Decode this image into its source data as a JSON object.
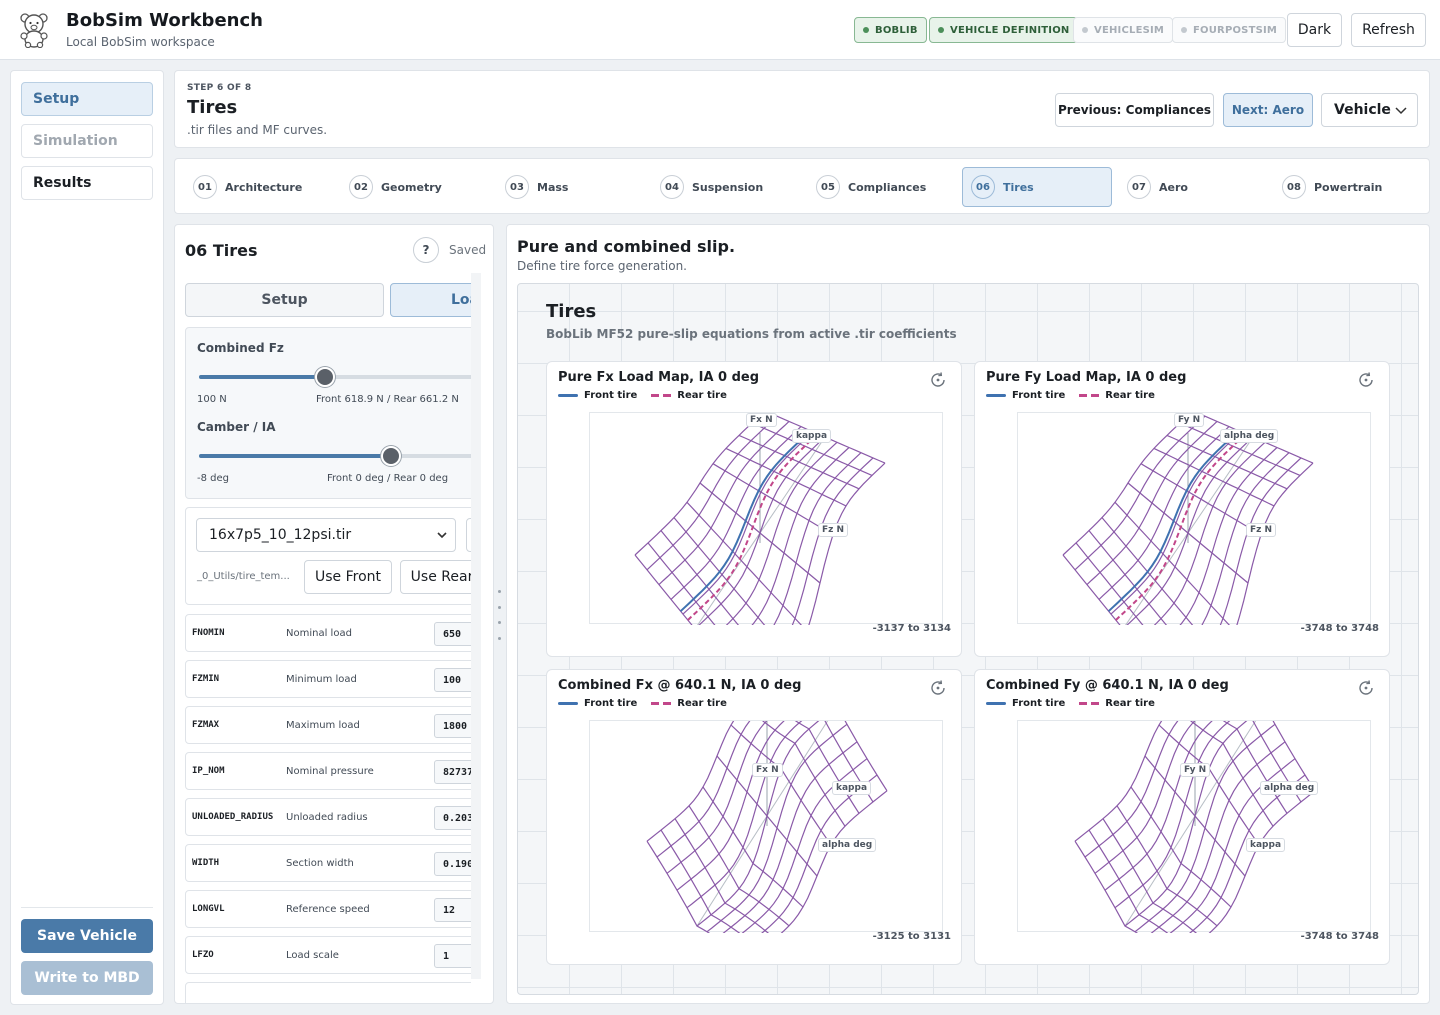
{
  "header": {
    "title": "BobSim Workbench",
    "subtitle": "Local BobSim workspace",
    "pills": [
      {
        "label": "BOBLIB",
        "state": "on"
      },
      {
        "label": "VEHICLE DEFINITION",
        "state": "on"
      },
      {
        "label": "VEHICLESIM",
        "state": "off"
      },
      {
        "label": "FOURPOSTSIM",
        "state": "off"
      }
    ],
    "dark_label": "Dark",
    "refresh_label": "Refresh"
  },
  "sidebar": {
    "items": [
      {
        "label": "Setup",
        "state": "active"
      },
      {
        "label": "Simulation",
        "state": "disabled"
      },
      {
        "label": "Results",
        "state": "normal"
      }
    ],
    "save_label": "Save Vehicle",
    "write_label": "Write to MBD"
  },
  "step": {
    "kicker": "STEP 6 OF 8",
    "title": "Tires",
    "subtitle": ".tir files and MF curves.",
    "prev_label": "Previous: Compliances",
    "next_label": "Next: Aero",
    "scope_label": "Vehicle"
  },
  "stepper": [
    {
      "num": "01",
      "label": "Architecture"
    },
    {
      "num": "02",
      "label": "Geometry"
    },
    {
      "num": "03",
      "label": "Mass"
    },
    {
      "num": "04",
      "label": "Suspension"
    },
    {
      "num": "05",
      "label": "Compliances"
    },
    {
      "num": "06",
      "label": "Tires",
      "active": true
    },
    {
      "num": "07",
      "label": "Aero"
    },
    {
      "num": "08",
      "label": "Powertrain"
    }
  ],
  "left": {
    "title": "06 Tires",
    "help": "?",
    "saved": "Saved",
    "seg_setup": "Setup",
    "seg_load": "Loa",
    "fz": {
      "label": "Combined Fz",
      "min": "100 N",
      "value": "Front 618.9 N / Rear 661.2 N",
      "fraction": 0.42
    },
    "camber": {
      "label": "Camber / IA",
      "min": "-8 deg",
      "value": "Front 0 deg / Rear 0 deg",
      "fraction": 0.64
    },
    "file": {
      "selected": "16x7p5_10_12psi.tir",
      "path": "_0_Utils/tire_tem...",
      "use_front": "Use Front",
      "use_rear": "Use Rear"
    },
    "params": [
      {
        "key": "FNOMIN",
        "desc": "Nominal load",
        "value": "650"
      },
      {
        "key": "FZMIN",
        "desc": "Minimum load",
        "value": "100"
      },
      {
        "key": "FZMAX",
        "desc": "Maximum load",
        "value": "1800"
      },
      {
        "key": "IP_NOM",
        "desc": "Nominal pressure",
        "value": "82737"
      },
      {
        "key": "UNLOADED_RADIUS",
        "desc": "Unloaded radius",
        "value": "0.203"
      },
      {
        "key": "WIDTH",
        "desc": "Section width",
        "value": "0.190"
      },
      {
        "key": "LONGVL",
        "desc": "Reference speed",
        "value": "12"
      },
      {
        "key": "LFZO",
        "desc": "Load scale",
        "value": "1"
      }
    ]
  },
  "right": {
    "title": "Pure and combined slip.",
    "subtitle": "Define tire force generation.",
    "area_title": "Tires",
    "area_sub": "BobLib MF52 pure-slip equations from active .tir coefficients",
    "legend_front": "Front tire",
    "legend_rear": "Rear tire",
    "colors": {
      "front": "#3f72b0",
      "rear": "#c2478a",
      "mesh": "#8a5aa8"
    },
    "plots": [
      {
        "title": "Pure Fx Load Map, IA 0 deg",
        "range": "-3137 to 3134",
        "z": "Fx N",
        "a": "kappa",
        "b": "Fz N"
      },
      {
        "title": "Pure Fy Load Map, IA 0 deg",
        "range": "-3748 to 3748",
        "z": "Fy N",
        "a": "alpha deg",
        "b": "Fz N"
      },
      {
        "title": "Combined Fx @ 640.1 N, IA 0 deg",
        "range": "-3125 to 3131",
        "z": "Fx N",
        "a": "kappa",
        "b": "alpha deg"
      },
      {
        "title": "Combined Fy @ 640.1 N, IA 0 deg",
        "range": "-3748 to 3748",
        "z": "Fy N",
        "a": "alpha deg",
        "b": "kappa"
      }
    ]
  }
}
